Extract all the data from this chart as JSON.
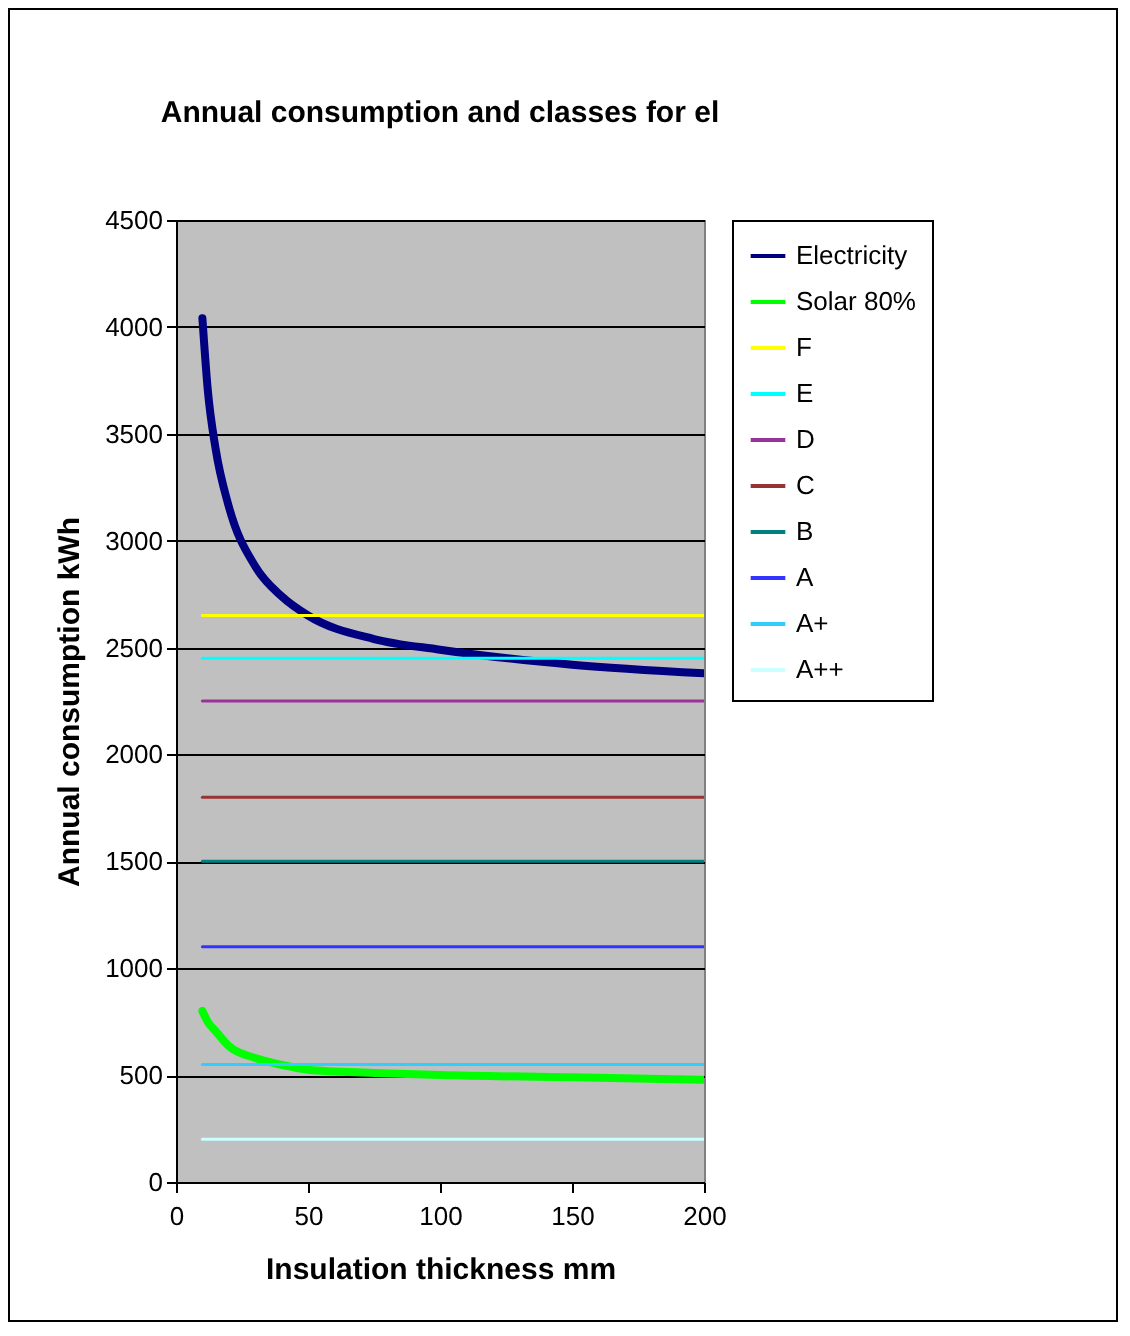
{
  "chart_data": {
    "type": "line",
    "title": "Annual consumption and classes for el",
    "xlabel": "Insulation thickness mm",
    "ylabel": "Annual consumption kWh",
    "x": [
      10,
      12,
      15,
      20,
      30,
      40,
      50,
      75,
      100,
      150,
      200
    ],
    "series": [
      {
        "name": "Electricity",
        "color": "#000080",
        "values": [
          4040,
          3710,
          3430,
          3160,
          2880,
          2740,
          2650,
          2540,
          2490,
          2420,
          2380
        ]
      },
      {
        "name": "Solar 80%",
        "color": "#00ff00",
        "values": [
          800,
          750,
          706,
          636,
          580,
          548,
          525,
          510,
          500,
          490,
          478
        ]
      },
      {
        "name": "F",
        "color": "#ffff00",
        "values": [
          2650,
          2650,
          2650,
          2650,
          2650,
          2650,
          2650,
          2650,
          2650,
          2650,
          2650
        ]
      },
      {
        "name": "E",
        "color": "#00ffff",
        "values": [
          2450,
          2450,
          2450,
          2450,
          2450,
          2450,
          2450,
          2450,
          2450,
          2450,
          2450
        ]
      },
      {
        "name": "D",
        "color": "#993399",
        "values": [
          2250,
          2250,
          2250,
          2250,
          2250,
          2250,
          2250,
          2250,
          2250,
          2250,
          2250
        ]
      },
      {
        "name": "C",
        "color": "#993333",
        "values": [
          1800,
          1800,
          1800,
          1800,
          1800,
          1800,
          1800,
          1800,
          1800,
          1800,
          1800
        ]
      },
      {
        "name": "B",
        "color": "#008080",
        "values": [
          1500,
          1500,
          1500,
          1500,
          1500,
          1500,
          1500,
          1500,
          1500,
          1500,
          1500
        ]
      },
      {
        "name": "A",
        "color": "#3333ff",
        "values": [
          1100,
          1100,
          1100,
          1100,
          1100,
          1100,
          1100,
          1100,
          1100,
          1100,
          1100
        ]
      },
      {
        "name": "A+",
        "color": "#33ccff",
        "values": [
          550,
          550,
          550,
          550,
          550,
          550,
          550,
          550,
          550,
          550,
          550
        ]
      },
      {
        "name": "A++",
        "color": "#ccffff",
        "values": [
          200,
          200,
          200,
          200,
          200,
          200,
          200,
          200,
          200,
          200,
          200
        ]
      }
    ],
    "xlim": [
      0,
      200
    ],
    "xticks": [
      0,
      50,
      100,
      150,
      200
    ],
    "ylim": [
      0,
      4500
    ],
    "yticks": [
      0,
      500,
      1000,
      1500,
      2000,
      2500,
      3000,
      3500,
      4000,
      4500
    ],
    "grid": "y",
    "legend": "right",
    "marker": "none",
    "line_style": "solid"
  }
}
